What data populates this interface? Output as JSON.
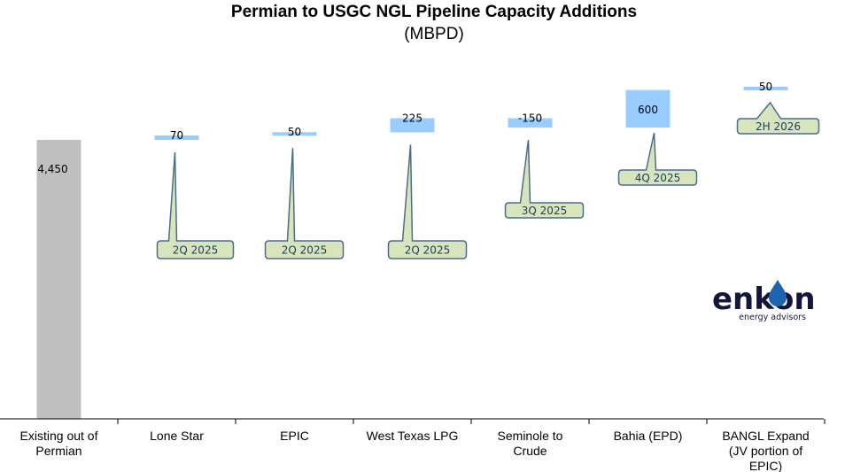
{
  "chart_data": {
    "type": "bar",
    "variant": "waterfall",
    "title": "Permian to USGC NGL Pipeline Capacity Additions",
    "subtitle": "(MBPD)",
    "categories": [
      "Existing out of Permian",
      "Lone Star",
      "EPIC",
      "West Texas LPG",
      "Seminole to Crude",
      "Bahia (EPD)",
      "BANGL Expand (JV portion of EPIC)"
    ],
    "values": [
      4450,
      70,
      50,
      225,
      -150,
      600,
      50
    ],
    "value_labels": [
      "4,450",
      "70",
      "50",
      "225",
      "-150",
      "600",
      "50"
    ],
    "timing": [
      "",
      "2Q 2025",
      "2Q 2025",
      "2Q 2025",
      "3Q 2025",
      "4Q 2025",
      "2H 2026"
    ],
    "colors": {
      "existing": "#bfbfbf",
      "addition": "#99ccff",
      "callout_fill": "#d8e4bc",
      "callout_stroke": "#4a6d8c"
    }
  },
  "logo": {
    "word": "enkon",
    "tagline": "energy advisors"
  }
}
